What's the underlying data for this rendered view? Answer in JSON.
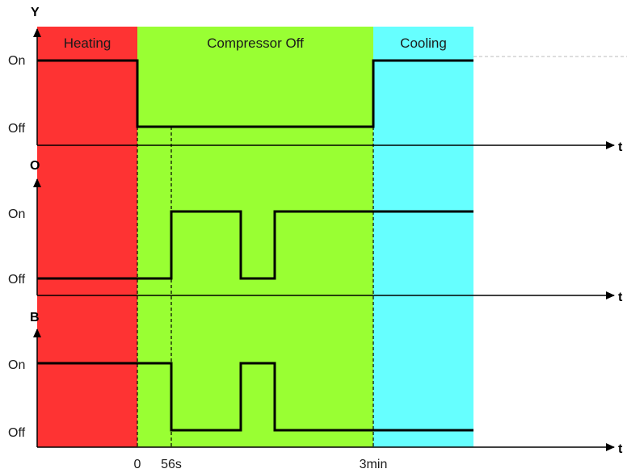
{
  "colors": {
    "heating": "#fe3333",
    "compressor_off": "#99ff33",
    "cooling": "#66ffff",
    "signal": "#000000"
  },
  "phases": {
    "heating": "Heating",
    "compressor_off": "Compressor Off",
    "cooling": "Cooling"
  },
  "axes": {
    "y": "Y",
    "o": "O",
    "b": "B",
    "t": "t"
  },
  "levels": {
    "on": "On",
    "off": "Off"
  },
  "time_labels": {
    "zero": "0",
    "delay": "56s",
    "three_min": "3min"
  }
}
